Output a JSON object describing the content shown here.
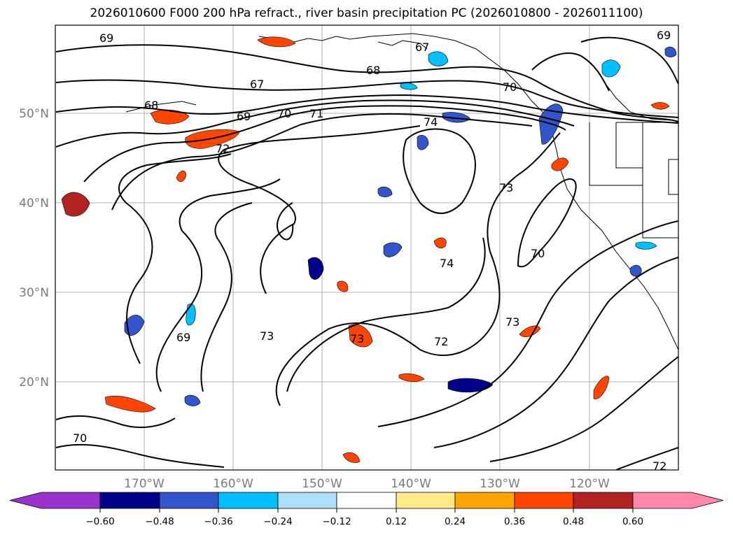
{
  "title": "2026010600 F000 200 hPa refract., river basin precipitation PC (2026010800 - 2026011100)",
  "lat_labels": [
    "50°N",
    "40°N",
    "30°N",
    "20°N"
  ],
  "lon_labels": [
    "170°W",
    "160°W",
    "150°W",
    "140°W",
    "130°W",
    "120°W"
  ],
  "contour_labels": [
    "69",
    "67",
    "68",
    "67",
    "68",
    "69",
    "70",
    "71",
    "72",
    "74",
    "73",
    "70",
    "74",
    "69",
    "73",
    "73",
    "72",
    "73",
    "70",
    "72",
    "69",
    "70"
  ],
  "colorbar": {
    "ticks": [
      "−0.60",
      "−0.48",
      "−0.36",
      "−0.24",
      "−0.12",
      "0.12",
      "0.24",
      "0.36",
      "0.48",
      "0.60"
    ],
    "colors": [
      "#9933cc",
      "#00008b",
      "#3355cc",
      "#00bfff",
      "#aee1f9",
      "#ffffff",
      "#ffeb8a",
      "#ffa500",
      "#ff4500",
      "#b22222",
      "#ff88aa"
    ]
  }
}
